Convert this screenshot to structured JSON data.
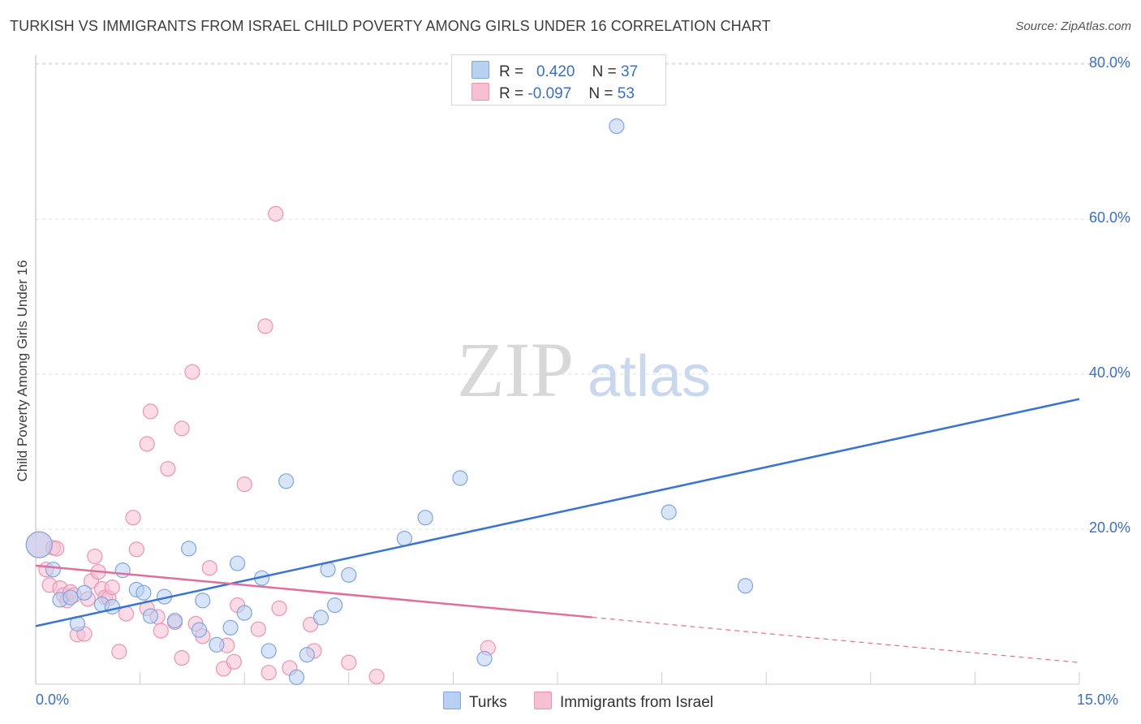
{
  "title": "TURKISH VS IMMIGRANTS FROM ISRAEL CHILD POVERTY AMONG GIRLS UNDER 16 CORRELATION CHART",
  "source": "Source: ZipAtlas.com",
  "watermark": {
    "zip": "ZIP",
    "atlas": "atlas"
  },
  "legend": {
    "rows": [
      {
        "r_label": "R =",
        "r_value": "0.420",
        "n_label": "N =",
        "n_value": "37"
      },
      {
        "r_label": "R =",
        "r_value": "-0.097",
        "n_label": "N =",
        "n_value": "53"
      }
    ]
  },
  "bottom_legend": {
    "turks": "Turks",
    "israel": "Immigrants from Israel"
  },
  "chart_data": {
    "type": "scatter",
    "title": "TURKISH VS IMMIGRANTS FROM ISRAEL CHILD POVERTY AMONG GIRLS UNDER 16 CORRELATION CHART",
    "xlabel": "",
    "ylabel": "Child Poverty Among Girls Under 16",
    "xlim": [
      0,
      15
    ],
    "ylim": [
      0,
      82
    ],
    "x_tick_labels": [
      "0.0%",
      "15.0%"
    ],
    "y_ticks": [
      20,
      40,
      60,
      80
    ],
    "y_tick_labels": [
      "20.0%",
      "40.0%",
      "60.0%",
      "80.0%"
    ],
    "grid": true,
    "colors": {
      "turks_fill": "#b8d0f2",
      "turks_stroke": "#7ea6e0",
      "turks_line": "#3a74d0",
      "israel_fill": "#f7c0d2",
      "israel_stroke": "#ec93b3",
      "israel_line": "#e26f99"
    },
    "series": [
      {
        "name": "Turks",
        "r": 0.42,
        "n": 37,
        "trend": {
          "x0": 0,
          "y0": 7.5,
          "x1": 15,
          "y1": 36.8,
          "solid_to": 15
        },
        "points": [
          [
            0.05,
            18.0
          ],
          [
            0.25,
            14.8
          ],
          [
            0.35,
            10.9
          ],
          [
            0.5,
            11.2
          ],
          [
            0.6,
            7.8
          ],
          [
            0.7,
            11.8
          ],
          [
            0.95,
            10.3
          ],
          [
            1.1,
            10.0
          ],
          [
            1.25,
            14.7
          ],
          [
            1.45,
            12.2
          ],
          [
            1.55,
            11.8
          ],
          [
            1.65,
            8.8
          ],
          [
            1.85,
            11.3
          ],
          [
            2.0,
            8.2
          ],
          [
            2.2,
            17.5
          ],
          [
            2.35,
            7.0
          ],
          [
            2.4,
            10.8
          ],
          [
            2.6,
            5.1
          ],
          [
            2.8,
            7.3
          ],
          [
            2.9,
            15.6
          ],
          [
            3.0,
            9.2
          ],
          [
            3.25,
            13.7
          ],
          [
            3.35,
            4.3
          ],
          [
            3.6,
            26.2
          ],
          [
            3.75,
            0.9
          ],
          [
            3.9,
            3.8
          ],
          [
            4.1,
            8.6
          ],
          [
            4.2,
            14.8
          ],
          [
            4.3,
            10.2
          ],
          [
            4.5,
            14.1
          ],
          [
            5.3,
            18.8
          ],
          [
            5.6,
            21.5
          ],
          [
            6.1,
            26.6
          ],
          [
            6.45,
            3.3
          ],
          [
            8.35,
            72.0
          ],
          [
            9.1,
            22.2
          ],
          [
            10.2,
            12.7
          ]
        ]
      },
      {
        "name": "Immigrants from Israel",
        "r": -0.097,
        "n": 53,
        "trend": {
          "x0": 0,
          "y0": 15.3,
          "x1": 15,
          "y1": 2.8,
          "solid_to": 8.0
        },
        "points": [
          [
            0.05,
            18.0
          ],
          [
            0.15,
            14.8
          ],
          [
            0.2,
            12.8
          ],
          [
            0.25,
            17.6
          ],
          [
            0.3,
            17.5
          ],
          [
            0.35,
            12.4
          ],
          [
            0.4,
            11.5
          ],
          [
            0.45,
            10.8
          ],
          [
            0.5,
            11.9
          ],
          [
            0.55,
            11.5
          ],
          [
            0.6,
            6.4
          ],
          [
            0.7,
            6.5
          ],
          [
            0.8,
            13.3
          ],
          [
            0.85,
            16.5
          ],
          [
            0.9,
            14.5
          ],
          [
            0.95,
            12.3
          ],
          [
            1.0,
            11.2
          ],
          [
            1.05,
            11.1
          ],
          [
            1.1,
            12.5
          ],
          [
            1.2,
            4.2
          ],
          [
            1.3,
            9.1
          ],
          [
            1.4,
            21.5
          ],
          [
            1.45,
            17.4
          ],
          [
            1.6,
            31.0
          ],
          [
            1.6,
            9.8
          ],
          [
            1.65,
            35.2
          ],
          [
            1.75,
            8.7
          ],
          [
            1.8,
            6.9
          ],
          [
            1.9,
            27.8
          ],
          [
            2.0,
            8.0
          ],
          [
            2.1,
            33.0
          ],
          [
            2.1,
            3.4
          ],
          [
            2.25,
            40.3
          ],
          [
            2.3,
            7.8
          ],
          [
            2.4,
            6.2
          ],
          [
            2.5,
            15.0
          ],
          [
            2.7,
            2.0
          ],
          [
            2.75,
            5.0
          ],
          [
            2.85,
            2.9
          ],
          [
            2.9,
            10.2
          ],
          [
            3.0,
            25.8
          ],
          [
            3.2,
            7.1
          ],
          [
            3.3,
            46.2
          ],
          [
            3.35,
            1.5
          ],
          [
            3.5,
            9.8
          ],
          [
            3.45,
            60.7
          ],
          [
            3.65,
            2.1
          ],
          [
            3.95,
            7.7
          ],
          [
            4.0,
            4.3
          ],
          [
            4.5,
            2.8
          ],
          [
            4.9,
            1.0
          ],
          [
            6.5,
            4.7
          ],
          [
            0.75,
            11.0
          ]
        ]
      }
    ]
  }
}
